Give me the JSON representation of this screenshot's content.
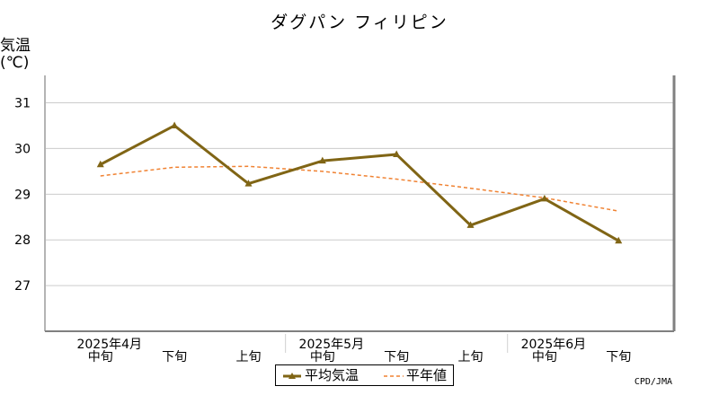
{
  "chart_data": {
    "type": "line",
    "title": "ダグパン フィリピン",
    "ylabel_line1": "気温",
    "ylabel_line2": "(℃)",
    "categories": [
      "中旬",
      "下旬",
      "上旬",
      "中旬",
      "下旬",
      "上旬",
      "中旬",
      "下旬"
    ],
    "month_labels": [
      {
        "label": "2025年4月",
        "index": 0
      },
      {
        "label": "2025年5月",
        "index": 3
      },
      {
        "label": "2025年6月",
        "index": 6
      }
    ],
    "ylim": [
      26,
      31.6
    ],
    "yticks": [
      27,
      28,
      29,
      30,
      31
    ],
    "grid": true,
    "legend_position": "bottom-center",
    "series": [
      {
        "name": "平均気温",
        "color": "#806515",
        "style": "solid",
        "marker": "triangle",
        "values": [
          29.65,
          30.5,
          29.23,
          29.73,
          29.87,
          28.32,
          28.9,
          27.98
        ]
      },
      {
        "name": "平年値",
        "color": "#f08232",
        "style": "dashed",
        "marker": "none",
        "values": [
          29.4,
          29.59,
          29.61,
          29.5,
          29.33,
          29.13,
          28.92,
          28.63
        ]
      }
    ],
    "credit": "CPD/JMA"
  }
}
